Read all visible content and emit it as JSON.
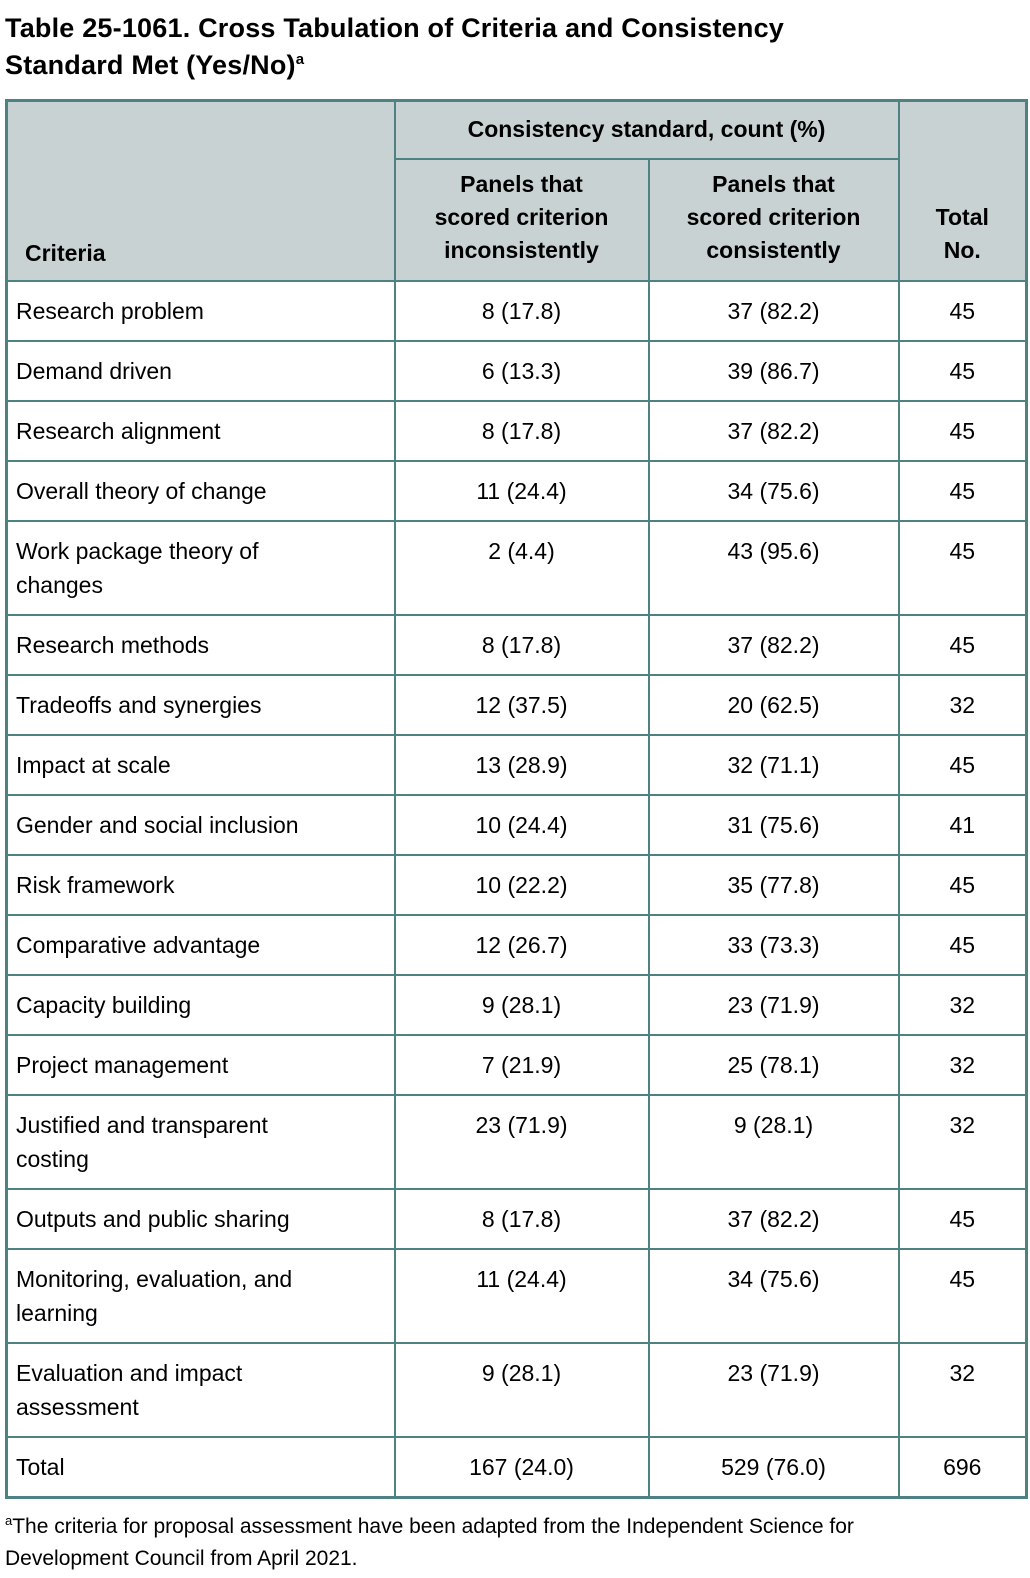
{
  "title": {
    "text": "Table 25-1061. Cross Tabulation of Criteria and Consistency\nStandard Met (Yes/No)",
    "superscript": "a"
  },
  "table": {
    "group_header": "Consistency standard, count (%)",
    "columns": {
      "criteria": "Criteria",
      "inconsistent": "Panels that\nscored criterion\ninconsistently",
      "consistent": "Panels that\nscored criterion\nconsistently",
      "total": "Total\nNo."
    },
    "rows": [
      {
        "criteria": "Research problem",
        "inconsistent": "8 (17.8)",
        "consistent": "37 (82.2)",
        "total": "45"
      },
      {
        "criteria": "Demand driven",
        "inconsistent": "6 (13.3)",
        "consistent": "39 (86.7)",
        "total": "45"
      },
      {
        "criteria": "Research alignment",
        "inconsistent": "8 (17.8)",
        "consistent": "37 (82.2)",
        "total": "45"
      },
      {
        "criteria": "Overall theory of change",
        "inconsistent": "11 (24.4)",
        "consistent": "34 (75.6)",
        "total": "45"
      },
      {
        "criteria": "Work package theory of\nchanges",
        "inconsistent": "2 (4.4)",
        "consistent": "43 (95.6)",
        "total": "45"
      },
      {
        "criteria": "Research methods",
        "inconsistent": "8 (17.8)",
        "consistent": "37 (82.2)",
        "total": "45"
      },
      {
        "criteria": "Tradeoffs and synergies",
        "inconsistent": "12 (37.5)",
        "consistent": "20 (62.5)",
        "total": "32"
      },
      {
        "criteria": "Impact at scale",
        "inconsistent": "13 (28.9)",
        "consistent": "32 (71.1)",
        "total": "45"
      },
      {
        "criteria": "Gender and social inclusion",
        "inconsistent": "10 (24.4)",
        "consistent": "31 (75.6)",
        "total": "41"
      },
      {
        "criteria": "Risk framework",
        "inconsistent": "10 (22.2)",
        "consistent": "35 (77.8)",
        "total": "45"
      },
      {
        "criteria": "Comparative advantage",
        "inconsistent": "12 (26.7)",
        "consistent": "33 (73.3)",
        "total": "45"
      },
      {
        "criteria": "Capacity building",
        "inconsistent": "9 (28.1)",
        "consistent": "23 (71.9)",
        "total": "32"
      },
      {
        "criteria": "Project management",
        "inconsistent": "7 (21.9)",
        "consistent": "25 (78.1)",
        "total": "32"
      },
      {
        "criteria": "Justified and transparent\ncosting",
        "inconsistent": "23 (71.9)",
        "consistent": "9 (28.1)",
        "total": "32"
      },
      {
        "criteria": "Outputs and public sharing",
        "inconsistent": "8 (17.8)",
        "consistent": "37 (82.2)",
        "total": "45"
      },
      {
        "criteria": "Monitoring, evaluation, and\nlearning",
        "inconsistent": "11 (24.4)",
        "consistent": "34 (75.6)",
        "total": "45"
      },
      {
        "criteria": "Evaluation and impact\nassessment",
        "inconsistent": "9 (28.1)",
        "consistent": "23 (71.9)",
        "total": "32"
      },
      {
        "criteria": "Total",
        "inconsistent": "167 (24.0)",
        "consistent": "529 (76.0)",
        "total": "696"
      }
    ],
    "colors": {
      "header_background": "#c9d2d2",
      "border": "#4e8181",
      "body_background": "#ffffff",
      "text": "#000000"
    }
  },
  "footnote": {
    "superscript": "a",
    "text": "The criteria for proposal assessment have been adapted from the Independent Science for\nDevelopment Council from April 2021."
  }
}
